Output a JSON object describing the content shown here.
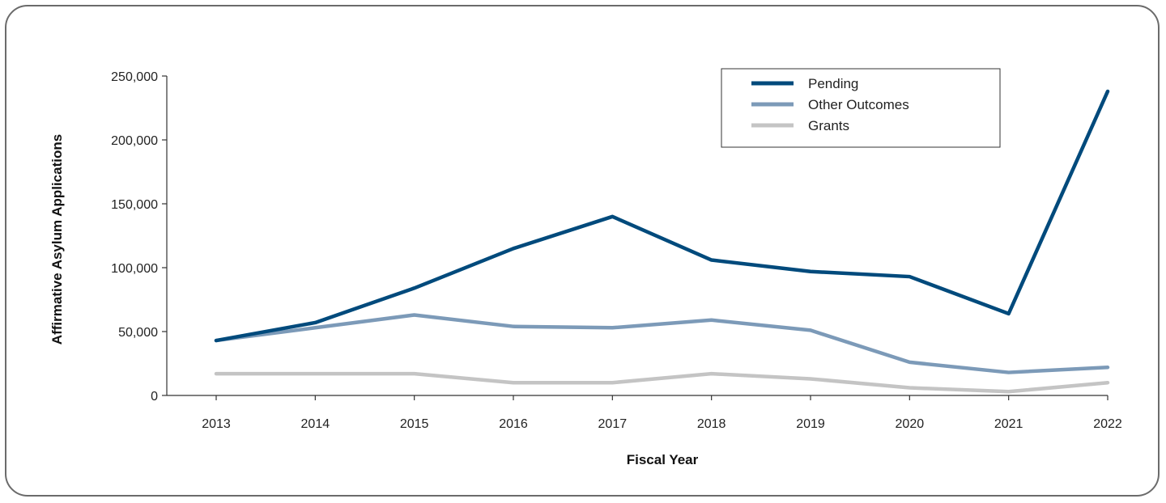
{
  "chart_data": {
    "type": "line",
    "title": "",
    "xlabel": "Fiscal Year",
    "ylabel": "Affirmative Asylum Applications",
    "x": [
      "2013",
      "2014",
      "2015",
      "2016",
      "2017",
      "2018",
      "2019",
      "2020",
      "2021",
      "2022"
    ],
    "ylim": [
      0,
      250000
    ],
    "yticks": [
      0,
      50000,
      100000,
      150000,
      200000,
      250000
    ],
    "ytick_labels": [
      "0",
      "50,000",
      "100,000",
      "150,000",
      "200,000",
      "250,000"
    ],
    "grid": false,
    "legend_position": "top-right",
    "series": [
      {
        "name": "Pending",
        "color": "#004a7c",
        "values": [
          43000,
          57000,
          84000,
          115000,
          140000,
          106000,
          97000,
          93000,
          64000,
          238000
        ]
      },
      {
        "name": "Other Outcomes",
        "color": "#7c9ab8",
        "values": [
          43000,
          53000,
          63000,
          54000,
          53000,
          59000,
          51000,
          26000,
          18000,
          22000
        ]
      },
      {
        "name": "Grants",
        "color": "#c4c4c4",
        "values": [
          17000,
          17000,
          17000,
          10000,
          10000,
          17000,
          13000,
          6000,
          3000,
          10000
        ]
      }
    ]
  }
}
